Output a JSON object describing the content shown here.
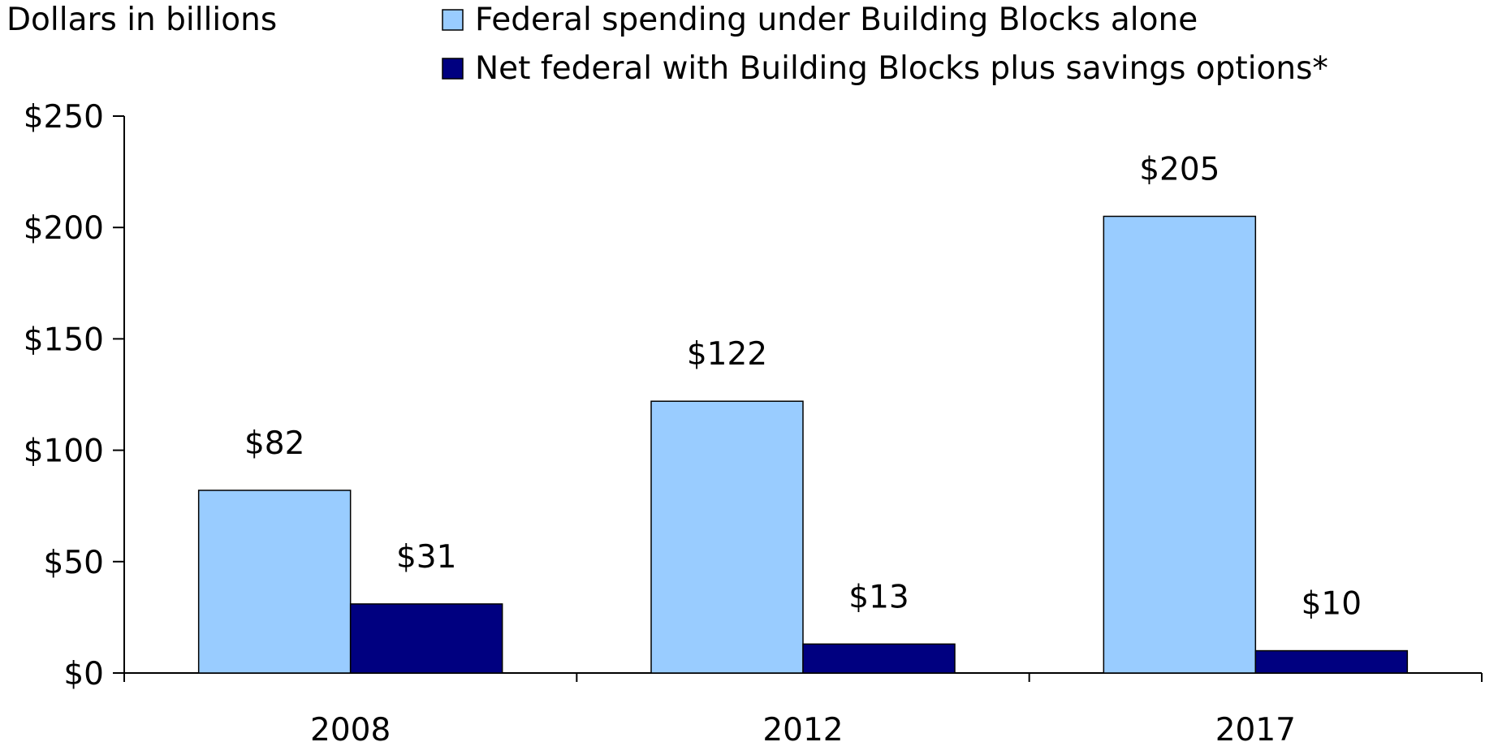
{
  "chart_data": {
    "type": "bar",
    "title": "",
    "ylabel": "Dollars in billions",
    "xlabel": "",
    "categories": [
      "2008",
      "2012",
      "2017"
    ],
    "series": [
      {
        "name": "Federal spending under Building Blocks alone",
        "values": [
          82,
          122,
          205
        ],
        "labels": [
          "$82",
          "$122",
          "$205"
        ],
        "color": "#99CCFF"
      },
      {
        "name": "Net federal with Building Blocks plus savings options*",
        "values": [
          31,
          13,
          10
        ],
        "labels": [
          "$31",
          "$13",
          "$10"
        ],
        "color": "#000080"
      }
    ],
    "ylim": [
      0,
      250
    ],
    "yticks": [
      0,
      50,
      100,
      150,
      200,
      250
    ],
    "ytick_labels": [
      "$0",
      "$50",
      "$100",
      "$150",
      "$200",
      "$250"
    ],
    "grid": false,
    "legend_position": "top"
  }
}
